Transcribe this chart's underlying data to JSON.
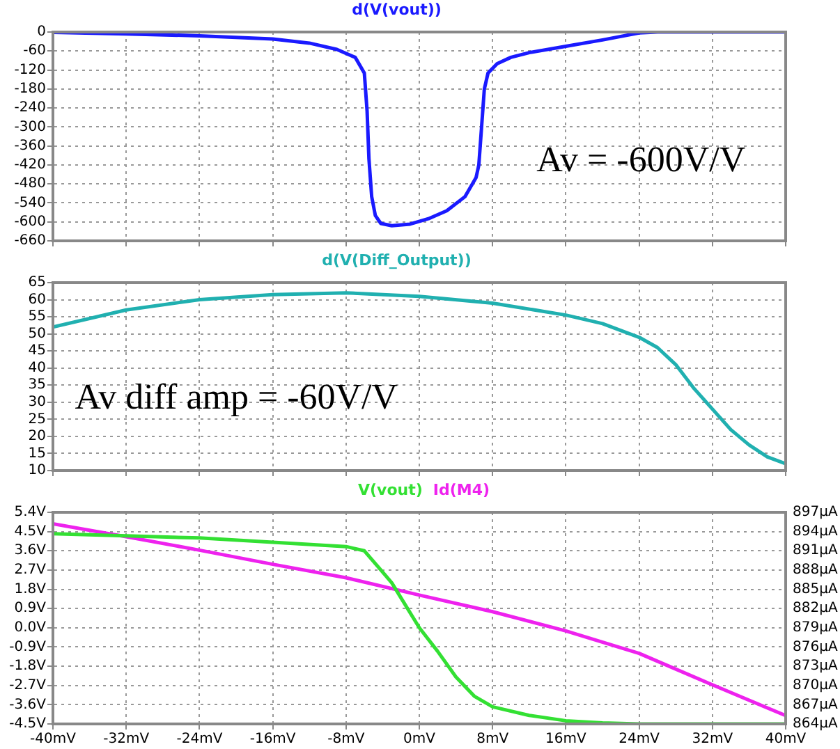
{
  "chart_data": [
    {
      "type": "line",
      "tick_labels": "y",
      "grid": true,
      "legend": "top",
      "annotations": [
        "Av = -600V/V"
      ],
      "xlim": [
        -40,
        40
      ],
      "xticks": [
        -40,
        -32,
        -24,
        -16,
        -8,
        0,
        8,
        16,
        24,
        32,
        40
      ],
      "ylim": [
        -660,
        0
      ],
      "yticks": [
        0,
        -60,
        -120,
        -180,
        -240,
        -300,
        -360,
        -420,
        -480,
        -540,
        -600,
        -660
      ],
      "series": [
        {
          "name": "d(V(vout))",
          "color": "#1a1aff",
          "x": [
            -40,
            -32,
            -24,
            -16,
            -12,
            -9,
            -7,
            -6,
            -5.7,
            -5.5,
            -5.2,
            -4.8,
            -4.2,
            -3,
            -1,
            1,
            3,
            5,
            6.2,
            6.5,
            6.8,
            7.1,
            7.5,
            8.5,
            10,
            12,
            16,
            20,
            24,
            26,
            32,
            40
          ],
          "values": [
            -1,
            -6,
            -12,
            -22,
            -35,
            -55,
            -80,
            -130,
            -250,
            -400,
            -520,
            -580,
            -605,
            -612,
            -607,
            -590,
            -565,
            -520,
            -460,
            -420,
            -300,
            -180,
            -130,
            -100,
            -80,
            -65,
            -45,
            -25,
            -3,
            0,
            0,
            0
          ]
        }
      ]
    },
    {
      "type": "line",
      "tick_labels": "y",
      "grid": true,
      "legend": "top",
      "annotations": [
        "Av diff amp = -60V/V"
      ],
      "xlim": [
        -40,
        40
      ],
      "xticks": [
        -40,
        -32,
        -24,
        -16,
        -8,
        0,
        8,
        16,
        24,
        32,
        40
      ],
      "ylim": [
        10,
        65
      ],
      "yticks": [
        10,
        15,
        20,
        25,
        30,
        35,
        40,
        45,
        50,
        55,
        60,
        65
      ],
      "series": [
        {
          "name": "d(V(Diff_Output))",
          "color": "#20b0b0",
          "x": [
            -40,
            -32,
            -24,
            -16,
            -8,
            0,
            8,
            16,
            20,
            24,
            26,
            28,
            30,
            32,
            34,
            36,
            38,
            40
          ],
          "values": [
            52,
            57,
            60,
            61.5,
            62,
            61,
            59,
            55.5,
            53,
            49,
            46,
            41,
            34,
            28,
            22,
            17.5,
            14,
            12
          ]
        }
      ]
    },
    {
      "type": "line",
      "grid": true,
      "legend": "top",
      "xlim": [
        -40,
        40
      ],
      "xticks": [
        {
          "value": -40,
          "label": "-40mV"
        },
        {
          "value": -32,
          "label": "-32mV"
        },
        {
          "value": -24,
          "label": "-24mV"
        },
        {
          "value": -16,
          "label": "-16mV"
        },
        {
          "value": -8,
          "label": "-8mV"
        },
        {
          "value": 0,
          "label": "0mV"
        },
        {
          "value": 8,
          "label": "8mV"
        },
        {
          "value": 16,
          "label": "16mV"
        },
        {
          "value": 24,
          "label": "24mV"
        },
        {
          "value": 32,
          "label": "32mV"
        },
        {
          "value": 40,
          "label": "40mV"
        }
      ],
      "ylim": [
        -4.5,
        5.4
      ],
      "yticks": [
        {
          "value": -4.5,
          "label": "-4.5V"
        },
        {
          "value": -3.6,
          "label": "-3.6V"
        },
        {
          "value": -2.7,
          "label": "-2.7V"
        },
        {
          "value": -1.8,
          "label": "-1.8V"
        },
        {
          "value": -0.9,
          "label": "-0.9V"
        },
        {
          "value": 0,
          "label": "0.0V"
        },
        {
          "value": 0.9,
          "label": "0.9V"
        },
        {
          "value": 1.8,
          "label": "1.8V"
        },
        {
          "value": 2.7,
          "label": "2.7V"
        },
        {
          "value": 3.6,
          "label": "3.6V"
        },
        {
          "value": 4.5,
          "label": "4.5V"
        },
        {
          "value": 5.4,
          "label": "5.4V"
        }
      ],
      "y2lim": [
        864,
        897
      ],
      "y2ticks": [
        {
          "value": 864,
          "label": "864µA"
        },
        {
          "value": 867,
          "label": "867µA"
        },
        {
          "value": 870,
          "label": "870µA"
        },
        {
          "value": 873,
          "label": "873µA"
        },
        {
          "value": 876,
          "label": "876µA"
        },
        {
          "value": 879,
          "label": "879µA"
        },
        {
          "value": 882,
          "label": "882µA"
        },
        {
          "value": 885,
          "label": "885µA"
        },
        {
          "value": 888,
          "label": "888µA"
        },
        {
          "value": 891,
          "label": "891µA"
        },
        {
          "value": 894,
          "label": "894µA"
        },
        {
          "value": 897,
          "label": "897µA"
        }
      ],
      "series": [
        {
          "name": "V(vout)",
          "color": "#33e033",
          "x": [
            -40,
            -32,
            -24,
            -16,
            -8,
            -6,
            -4,
            -3,
            -2,
            0,
            2,
            4,
            6,
            8,
            12,
            16,
            20,
            24,
            40
          ],
          "values": [
            4.4,
            4.3,
            4.2,
            4.0,
            3.8,
            3.6,
            2.6,
            2.1,
            1.4,
            0.0,
            -1.1,
            -2.3,
            -3.2,
            -3.7,
            -4.1,
            -4.35,
            -4.45,
            -4.5,
            -4.5
          ]
        },
        {
          "name": "Id(M4)",
          "color": "#ee22ee",
          "axis": "y2",
          "x": [
            -40,
            -32,
            -24,
            -16,
            -8,
            0,
            8,
            16,
            24,
            32,
            40
          ],
          "values": [
            895.2,
            893.2,
            891.1,
            888.9,
            886.8,
            884.1,
            881.5,
            878.5,
            875.0,
            870.1,
            865.3
          ]
        }
      ]
    }
  ]
}
